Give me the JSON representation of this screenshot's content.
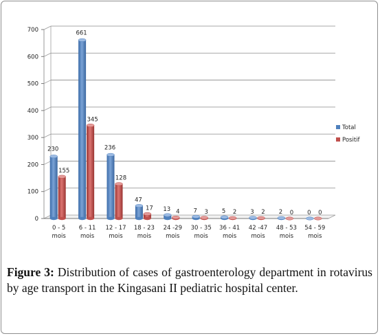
{
  "chart_data": {
    "type": "bar",
    "categories": [
      "0 - 5 mois",
      "6 - 11 mois",
      "12 - 17 mois",
      "18 - 23 mois",
      "24 -29 mois",
      "30 - 35 mois",
      "36 - 41 mois",
      "42 -47 mois",
      "48 - 53 mois",
      "54 - 59 mois"
    ],
    "category_lines": [
      [
        "0 - 5",
        "mois"
      ],
      [
        "6 - 11",
        "mois"
      ],
      [
        "12 - 17",
        "mois"
      ],
      [
        "18 - 23",
        "mois"
      ],
      [
        "24 -29",
        "mois"
      ],
      [
        "30 - 35",
        "mois"
      ],
      [
        "36 - 41",
        "mois"
      ],
      [
        "42 -47",
        "mois"
      ],
      [
        "48 - 53",
        "mois"
      ],
      [
        "54 - 59",
        "mois"
      ]
    ],
    "series": [
      {
        "name": "Total",
        "values": [
          230,
          661,
          236,
          47,
          13,
          7,
          5,
          3,
          2,
          0
        ],
        "color": "#4f81bd"
      },
      {
        "name": "Positif",
        "values": [
          155,
          345,
          128,
          17,
          4,
          3,
          2,
          2,
          0,
          0
        ],
        "color": "#c0504d"
      }
    ],
    "yticks": [
      0,
      100,
      200,
      300,
      400,
      500,
      600,
      700
    ],
    "ylim": [
      0,
      700
    ],
    "grid": true,
    "legend_position": "right",
    "title": "",
    "xlabel": "",
    "ylabel": ""
  },
  "caption": {
    "label": "Figure 3:",
    "text": " Distribution of cases of gastroenterology department in rotavirus by age transport in the Kingasani II pediatric hospital center."
  }
}
